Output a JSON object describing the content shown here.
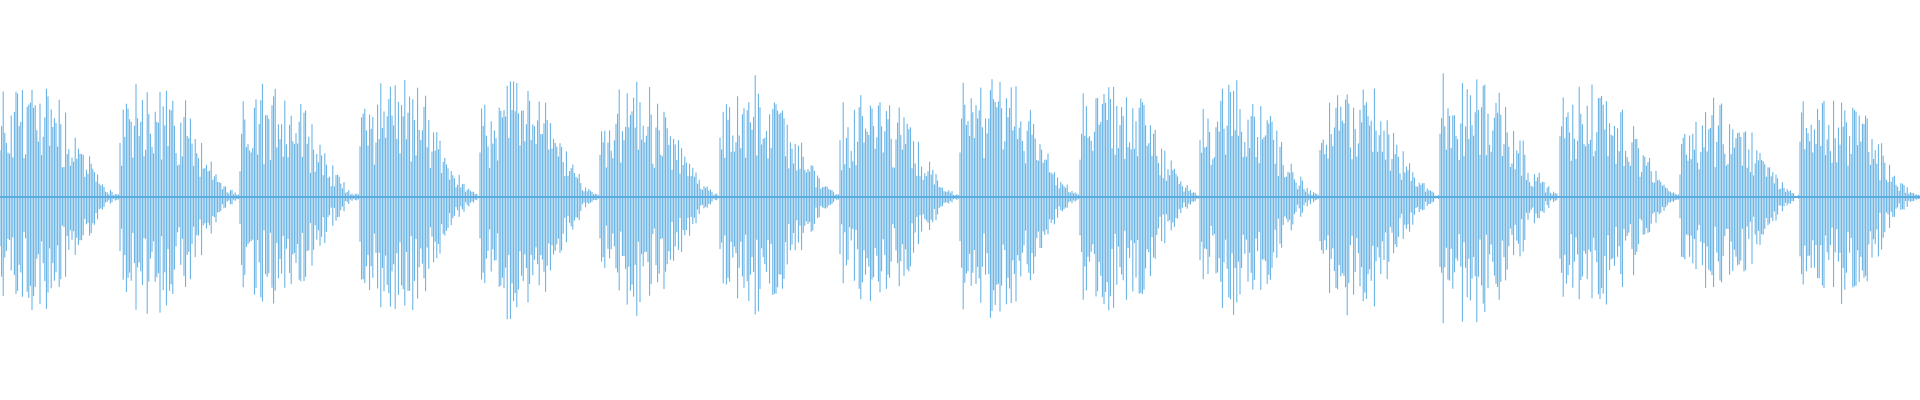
{
  "waveform": {
    "color": "#5dade2",
    "peaks": [
      0.92,
      0.95,
      0.9,
      0.97,
      0.95,
      0.9,
      0.92,
      0.82,
      0.96,
      0.95,
      0.92,
      0.9,
      1.0,
      0.9,
      0.8,
      0.86
    ]
  }
}
